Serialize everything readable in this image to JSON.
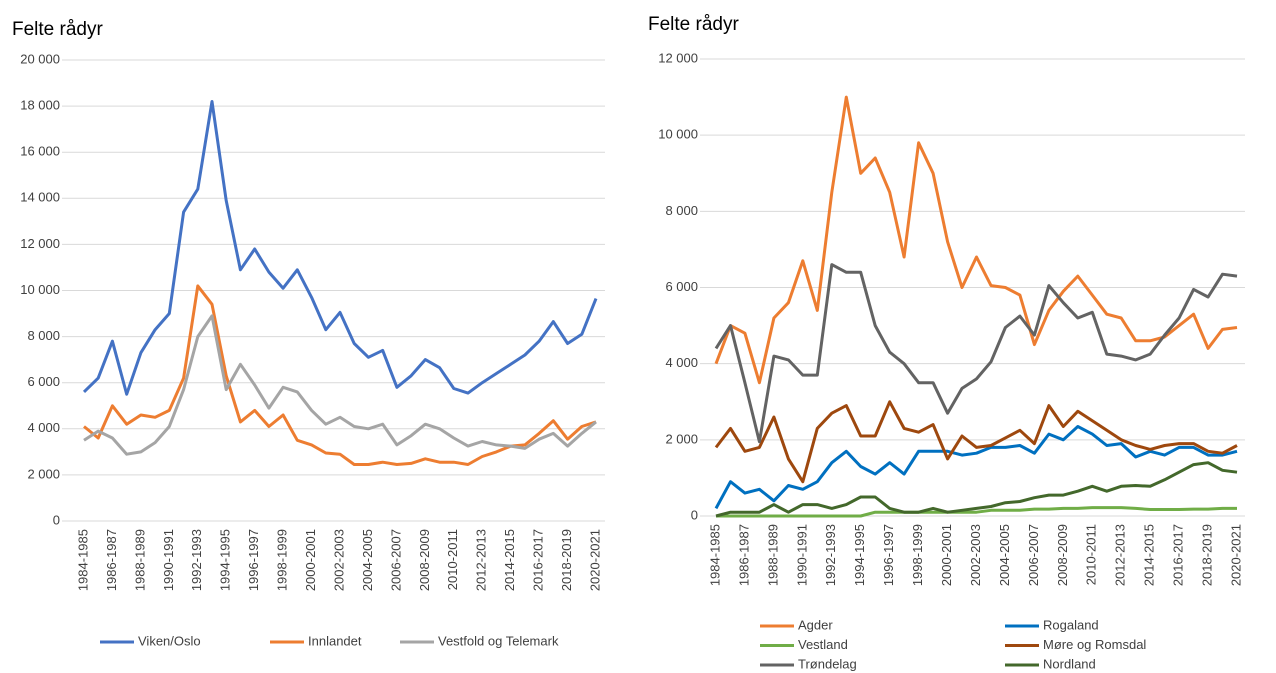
{
  "chart_data": [
    {
      "type": "line",
      "title": "Felte rådyr",
      "grid": true,
      "legend": "bottom",
      "categories": [
        "1984-1985",
        null,
        "1986-1987",
        null,
        "1988-1989",
        null,
        "1990-1991",
        null,
        "1992-1993",
        null,
        "1994-1995",
        null,
        "1996-1997",
        null,
        "1998-1999",
        null,
        "2000-2001",
        null,
        "2002-2003",
        null,
        "2004-2005",
        null,
        "2006-2007",
        null,
        "2008-2009",
        null,
        "2010-2011",
        null,
        "2012-2013",
        null,
        "2014-2015",
        null,
        "2016-2017",
        null,
        "2018-2019",
        null,
        "2020-2021"
      ],
      "ylim": [
        0,
        20000
      ],
      "yticks": [
        0,
        {
          "value": 2000,
          "label": "2 000"
        },
        {
          "value": 4000,
          "label": "4 000"
        },
        {
          "value": 6000,
          "label": "6 000"
        },
        {
          "value": 8000,
          "label": "8 000"
        },
        {
          "value": 10000,
          "label": "10 000"
        },
        {
          "value": 12000,
          "label": "12 000"
        },
        {
          "value": 14000,
          "label": "14 000"
        },
        {
          "value": 16000,
          "label": "16 000"
        },
        {
          "value": 18000,
          "label": "18 000"
        },
        {
          "value": 20000,
          "label": "20 000"
        }
      ],
      "series": [
        {
          "name": "Viken/Oslo",
          "color": "#4472c4",
          "values": [
            5600,
            6200,
            7800,
            5500,
            7300,
            8300,
            9000,
            13400,
            14400,
            18200,
            13900,
            10900,
            11800,
            10800,
            10100,
            10900,
            9700,
            8300,
            9050,
            7700,
            7100,
            7400,
            5800,
            6300,
            7000,
            6650,
            5750,
            5550,
            6000,
            6400,
            6800,
            7200,
            7800,
            8650,
            7700,
            8100,
            9650
          ]
        },
        {
          "name": "Innlandet",
          "color": "#ed7d31",
          "values": [
            4100,
            3600,
            5000,
            4200,
            4600,
            4500,
            4800,
            6200,
            10200,
            9400,
            6300,
            4300,
            4800,
            4100,
            4600,
            3500,
            3300,
            2950,
            2900,
            2450,
            2450,
            2550,
            2450,
            2500,
            2700,
            2550,
            2550,
            2450,
            2800,
            3000,
            3250,
            3300,
            3800,
            4350,
            3550,
            4100,
            4300
          ]
        },
        {
          "name": "Vestfold og Telemark",
          "color": "#a5a5a5",
          "values": [
            3500,
            3900,
            3600,
            2900,
            3000,
            3400,
            4100,
            5700,
            8000,
            8900,
            5700,
            6800,
            5900,
            4900,
            5800,
            5600,
            4800,
            4200,
            4500,
            4100,
            4000,
            4200,
            3300,
            3700,
            4200,
            4000,
            3600,
            3250,
            3450,
            3300,
            3250,
            3150,
            3550,
            3800,
            3250,
            3800,
            4300
          ]
        }
      ]
    },
    {
      "type": "line",
      "title": "Felte rådyr",
      "grid": true,
      "legend": "bottom",
      "categories": [
        "1984-1985",
        null,
        "1986-1987",
        null,
        "1988-1989",
        null,
        "1990-1991",
        null,
        "1992-1993",
        null,
        "1994-1995",
        null,
        "1996-1997",
        null,
        "1998-1999",
        null,
        "2000-2001",
        null,
        "2002-2003",
        null,
        "2004-2005",
        null,
        "2006-2007",
        null,
        "2008-2009",
        null,
        "2010-2011",
        null,
        "2012-2013",
        null,
        "2014-2015",
        null,
        "2016-2017",
        null,
        "2018-2019",
        null,
        "2020-2021"
      ],
      "ylim": [
        0,
        12000
      ],
      "yticks": [
        0,
        {
          "value": 2000,
          "label": "2 000"
        },
        {
          "value": 4000,
          "label": "4 000"
        },
        {
          "value": 6000,
          "label": "6 000"
        },
        {
          "value": 8000,
          "label": "8 000"
        },
        {
          "value": 10000,
          "label": "10 000"
        },
        {
          "value": 12000,
          "label": "12 000"
        }
      ],
      "series": [
        {
          "name": "Agder",
          "color": "#ed7d31",
          "values": [
            4000,
            5000,
            4800,
            3500,
            5200,
            5600,
            6700,
            5400,
            8500,
            11000,
            9000,
            9400,
            8500,
            6800,
            9800,
            9000,
            7200,
            6000,
            6800,
            6050,
            6000,
            5800,
            4500,
            5400,
            5900,
            6300,
            5800,
            5300,
            5200,
            4600,
            4600,
            4700,
            5000,
            5300,
            4400,
            4900,
            4950
          ]
        },
        {
          "name": "Rogaland",
          "color": "#0070c0",
          "values": [
            200,
            900,
            600,
            700,
            400,
            800,
            700,
            900,
            1400,
            1700,
            1300,
            1100,
            1400,
            1100,
            1700,
            1700,
            1700,
            1600,
            1650,
            1800,
            1800,
            1850,
            1650,
            2150,
            2000,
            2350,
            2150,
            1850,
            1900,
            1550,
            1700,
            1600,
            1800,
            1800,
            1600,
            1600,
            1700
          ]
        },
        {
          "name": "Vestland",
          "color": "#70ad47",
          "values": [
            0,
            0,
            0,
            0,
            0,
            0,
            0,
            0,
            0,
            0,
            0,
            100,
            100,
            100,
            100,
            100,
            100,
            100,
            100,
            150,
            150,
            150,
            180,
            180,
            200,
            200,
            220,
            220,
            220,
            200,
            170,
            170,
            170,
            180,
            180,
            200,
            200
          ]
        },
        {
          "name": "Møre og Romsdal",
          "color": "#9e480e",
          "values": [
            1800,
            2300,
            1700,
            1800,
            2600,
            1500,
            900,
            2300,
            2700,
            2900,
            2100,
            2100,
            3000,
            2300,
            2200,
            2400,
            1500,
            2100,
            1800,
            1850,
            2050,
            2250,
            1900,
            2900,
            2350,
            2750,
            2500,
            2250,
            2000,
            1850,
            1750,
            1850,
            1900,
            1900,
            1700,
            1650,
            1850
          ]
        },
        {
          "name": "Trøndelag",
          "color": "#636363",
          "values": [
            4400,
            5000,
            3500,
            1950,
            4200,
            4100,
            3700,
            3700,
            6600,
            6400,
            6400,
            5000,
            4300,
            4000,
            3500,
            3500,
            2700,
            3350,
            3600,
            4050,
            4950,
            5250,
            4750,
            6050,
            5600,
            5200,
            5350,
            4250,
            4200,
            4100,
            4250,
            4750,
            5200,
            5950,
            5750,
            6350,
            6300
          ]
        },
        {
          "name": "Nordland",
          "color": "#43682b",
          "values": [
            0,
            100,
            100,
            100,
            300,
            100,
            300,
            300,
            200,
            300,
            500,
            500,
            200,
            100,
            100,
            200,
            100,
            150,
            200,
            250,
            350,
            380,
            480,
            550,
            550,
            650,
            780,
            650,
            780,
            800,
            780,
            950,
            1150,
            1350,
            1400,
            1200,
            1150
          ]
        }
      ]
    }
  ]
}
